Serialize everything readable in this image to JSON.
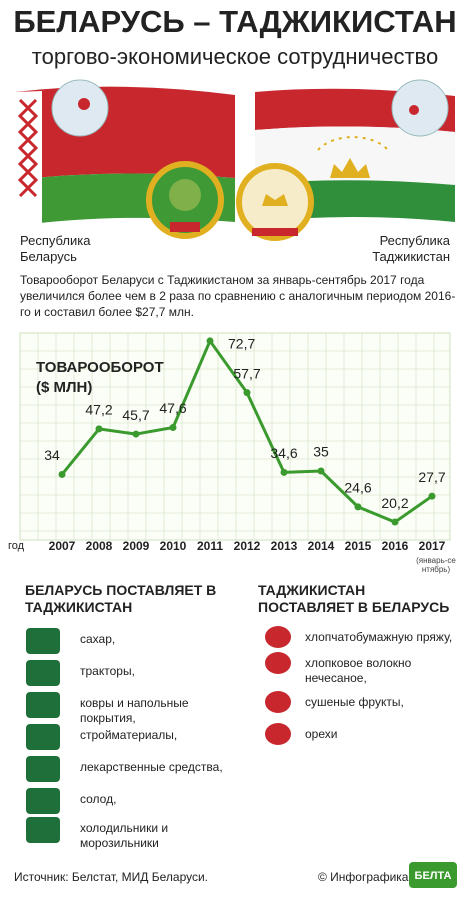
{
  "header": {
    "title": "БЕЛАРУСЬ – ТАДЖИКИСТАН",
    "subtitle": "торгово-экономическое сотрудничество"
  },
  "countries": [
    "Республика Беларусь",
    "Республика Таджикистан"
  ],
  "description": "Товарооборот Беларуси с Таджикистаном за январь-сентябрь 2017 года увеличился более чем в 2 раза по сравнению с аналогичным периодом 2016-го и составил более $27,7 млн.",
  "chart_data": {
    "type": "line",
    "title": "ТОВАРООБОРОТ ($ МЛН)",
    "x_label": "год",
    "categories": [
      "2007",
      "2008",
      "2009",
      "2010",
      "2011",
      "2012",
      "2013",
      "2014",
      "2015",
      "2016",
      "2017"
    ],
    "annotations": [
      "(январь-сентябрь)"
    ],
    "values": [
      34,
      47.2,
      45.7,
      47.6,
      72.7,
      57.7,
      34.6,
      35,
      24.6,
      20.2,
      27.7
    ],
    "value_labels": [
      "34",
      "47,2",
      "45,7",
      "47,6",
      "72,7",
      "57,7",
      "34,6",
      "35",
      "24,6",
      "20,2",
      "27,7"
    ],
    "color": "#3a9a2e",
    "ylim": [
      15,
      75
    ],
    "grid": true
  },
  "exports": {
    "title": "БЕЛАРУСЬ ПОСТАВЛЯЕТ В ТАДЖИКИСТАН",
    "items": [
      "сахар,",
      "тракторы,",
      "ковры и напольные покрытия,",
      "стройматериалы,",
      "лекарственные средства,",
      "солод,",
      "холодильники и морозильники"
    ]
  },
  "imports": {
    "title": "ТАДЖИКИСТАН ПОСТАВЛЯЕТ В БЕЛАРУСЬ",
    "items": [
      "хлопчатобумажную пряжу,",
      "хлопковое волокно нечесаное,",
      "сушеные фрукты,",
      "орехи"
    ]
  },
  "footer": {
    "source": "Источник: Белстат, МИД Беларуси.",
    "credit": "© Инфографика",
    "logo": "БЕЛТА"
  }
}
